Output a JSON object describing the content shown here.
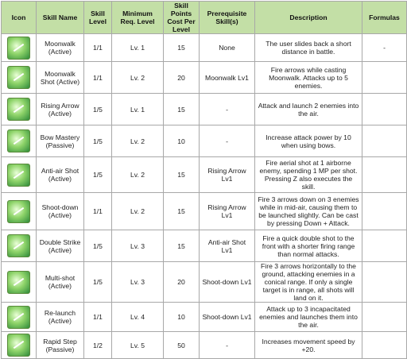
{
  "table": {
    "headers": [
      "Icon",
      "Skill Name",
      "Skill Level",
      "Minimum Req. Level",
      "Skill Points Cost Per Level",
      "Prerequisite Skill(s)",
      "Description",
      "Formulas"
    ],
    "rows": [
      {
        "name": "Moonwalk (Active)",
        "level": "1/1",
        "req": "Lv. 1",
        "cost": 15,
        "prereq": "None",
        "desc": "The user slides back a short distance in battle.",
        "formulas": "-"
      },
      {
        "name": "Moonwalk Shot (Active)",
        "level": "1/1",
        "req": "Lv. 2",
        "cost": 20,
        "prereq": "Moonwalk Lv1",
        "desc": "Fire arrows while casting Moonwalk. Attacks up to 5 enemies."
      },
      {
        "name": "Rising Arrow (Active)",
        "level": "1/5",
        "req": "Lv. 1",
        "cost": 15,
        "prereq": "-",
        "desc": "Attack and launch 2 enemies into the air."
      },
      {
        "name": "Bow Mastery (Passive)",
        "level": "1/5",
        "req": "Lv. 2",
        "cost": 10,
        "prereq": "-",
        "desc": "Increase attack power by 10 when using bows."
      },
      {
        "name": "Anti-air Shot (Active)",
        "level": "1/5",
        "req": "Lv. 2",
        "cost": 15,
        "prereq": "Rising Arrow Lv1",
        "desc": "Fire aerial shot at 1 airborne enemy, spending 1 MP per shot. Pressing Z also executes the skill."
      },
      {
        "name": "Shoot-down (Active)",
        "level": "1/1",
        "req": "Lv. 2",
        "cost": 15,
        "prereq": "Rising Arrow Lv1",
        "desc": "Fire 3 arrows down on 3 enemies while in mid-air, causing them to be launched slightly. Can be cast by pressing Down + Attack."
      },
      {
        "name": "Double Strike (Active)",
        "level": "1/5",
        "req": "Lv. 3",
        "cost": 15,
        "prereq": "Anti-air Shot Lv1",
        "desc": "Fire a quick double shot to the front with a shorter firing range than normal attacks."
      },
      {
        "name": "Multi-shot (Active)",
        "level": "1/5",
        "req": "Lv. 3",
        "cost": 20,
        "prereq": "Shoot-down Lv1",
        "desc": "Fire 3 arrows horizontally to the ground, attacking enemies in a conical range. If only a single target is in range, all shots will land on it."
      },
      {
        "name": "Re-launch (Active)",
        "level": "1/1",
        "req": "Lv. 4",
        "cost": 10,
        "prereq": "Shoot-down Lv1",
        "desc": "Attack up to 3 incapacitated enemies and launches them into the air."
      },
      {
        "name": "Rapid Step (Passive)",
        "level": "1/2",
        "req": "Lv. 5",
        "cost": 50,
        "prereq": "-",
        "desc": "Increases movement speed by +20."
      }
    ]
  }
}
